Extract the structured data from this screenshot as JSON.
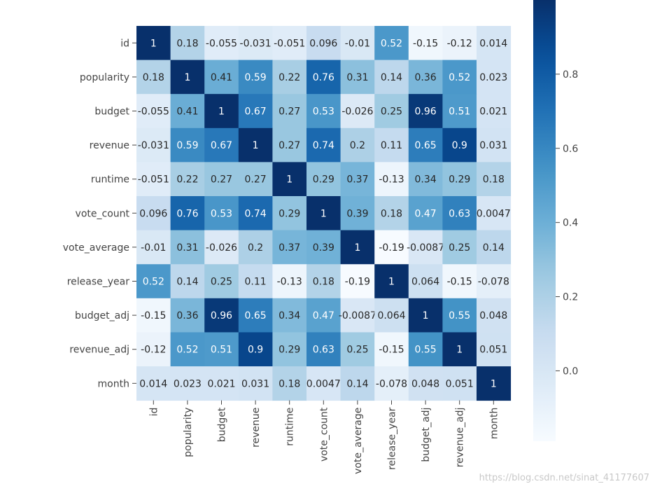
{
  "chart_data": {
    "type": "heatmap",
    "title": "",
    "xlabel": "",
    "ylabel": "",
    "colormap": "Blues",
    "colorbar": {
      "vmin": -0.19,
      "vmax": 1.0,
      "ticks": [
        "0.0",
        "0.2",
        "0.4",
        "0.6",
        "0.8"
      ],
      "tick_values": [
        0.0,
        0.2,
        0.4,
        0.6,
        0.8
      ]
    },
    "labels": [
      "id",
      "popularity",
      "budget",
      "revenue",
      "runtime",
      "vote_count",
      "vote_average",
      "release_year",
      "budget_adj",
      "revenue_adj",
      "month"
    ],
    "annotations": [
      [
        "1",
        "0.18",
        "-0.055",
        "-0.031",
        "-0.051",
        "0.096",
        "-0.01",
        "0.52",
        "-0.15",
        "-0.12",
        "0.014"
      ],
      [
        "0.18",
        "1",
        "0.41",
        "0.59",
        "0.22",
        "0.76",
        "0.31",
        "0.14",
        "0.36",
        "0.52",
        "0.023"
      ],
      [
        "-0.055",
        "0.41",
        "1",
        "0.67",
        "0.27",
        "0.53",
        "-0.026",
        "0.25",
        "0.96",
        "0.51",
        "0.021"
      ],
      [
        "-0.031",
        "0.59",
        "0.67",
        "1",
        "0.27",
        "0.74",
        "0.2",
        "0.11",
        "0.65",
        "0.9",
        "0.031"
      ],
      [
        "-0.051",
        "0.22",
        "0.27",
        "0.27",
        "1",
        "0.29",
        "0.37",
        "-0.13",
        "0.34",
        "0.29",
        "0.18"
      ],
      [
        "0.096",
        "0.76",
        "0.53",
        "0.74",
        "0.29",
        "1",
        "0.39",
        "0.18",
        "0.47",
        "0.63",
        "0.0047"
      ],
      [
        "-0.01",
        "0.31",
        "-0.026",
        "0.2",
        "0.37",
        "0.39",
        "1",
        "-0.19",
        "-0.0087",
        "0.25",
        "0.14"
      ],
      [
        "0.52",
        "0.14",
        "0.25",
        "0.11",
        "-0.13",
        "0.18",
        "-0.19",
        "1",
        "0.064",
        "-0.15",
        "-0.078"
      ],
      [
        "-0.15",
        "0.36",
        "0.96",
        "0.65",
        "0.34",
        "0.47",
        "-0.0087",
        "0.064",
        "1",
        "0.55",
        "0.048"
      ],
      [
        "-0.12",
        "0.52",
        "0.51",
        "0.9",
        "0.29",
        "0.63",
        "0.25",
        "-0.15",
        "0.55",
        "1",
        "0.051"
      ],
      [
        "0.014",
        "0.023",
        "0.021",
        "0.031",
        "0.18",
        "0.0047",
        "0.14",
        "-0.078",
        "0.048",
        "0.051",
        "1"
      ]
    ]
  },
  "watermark": "https://blog.csdn.net/sinat_41177607"
}
